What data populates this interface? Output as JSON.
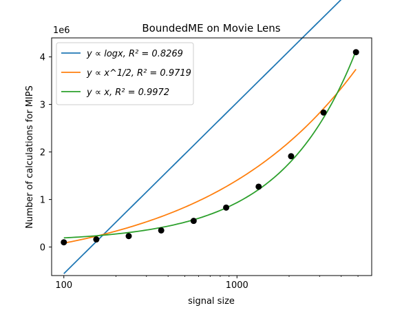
{
  "chart_data": {
    "type": "line",
    "title": "BoundedME on Movie Lens",
    "xlabel": "signal size",
    "ylabel": "Number of calculations for MIPS",
    "x_scale": "log",
    "xlim": [
      85,
      6000
    ],
    "ylim": [
      -600000,
      4400000
    ],
    "y_offset_label": "1e6",
    "x_ticks": [
      100,
      1000
    ],
    "x_tick_labels": [
      "100",
      "1000"
    ],
    "y_ticks": [
      0,
      1000000,
      2000000,
      3000000,
      4000000
    ],
    "y_tick_labels": [
      "0",
      "1",
      "2",
      "3",
      "4"
    ],
    "grid": false,
    "legend_position": "upper-left",
    "points": {
      "x": [
        100,
        154,
        237,
        365,
        562,
        866,
        1334,
        2054,
        3162,
        4870
      ],
      "y": [
        100000,
        160000,
        230000,
        350000,
        550000,
        830000,
        1270000,
        1910000,
        2830000,
        4100000
      ],
      "color": "#000000"
    },
    "series": [
      {
        "legend": "y ∝ logx,  R² = 0.8269",
        "color": "#1f77b4",
        "model": "log",
        "params": {
          "a": -560000,
          "b": 3600000
        }
      },
      {
        "legend": "y ∝ x^1/2,  R² = 0.9719",
        "color": "#ff7f0e",
        "model": "sqrt",
        "params": {
          "a": -530000,
          "b": 61200
        }
      },
      {
        "legend": "y ∝ x,  R² = 0.9972",
        "color": "#2ca02c",
        "model": "linear",
        "params": {
          "a": 110000,
          "b": 825
        }
      }
    ]
  }
}
